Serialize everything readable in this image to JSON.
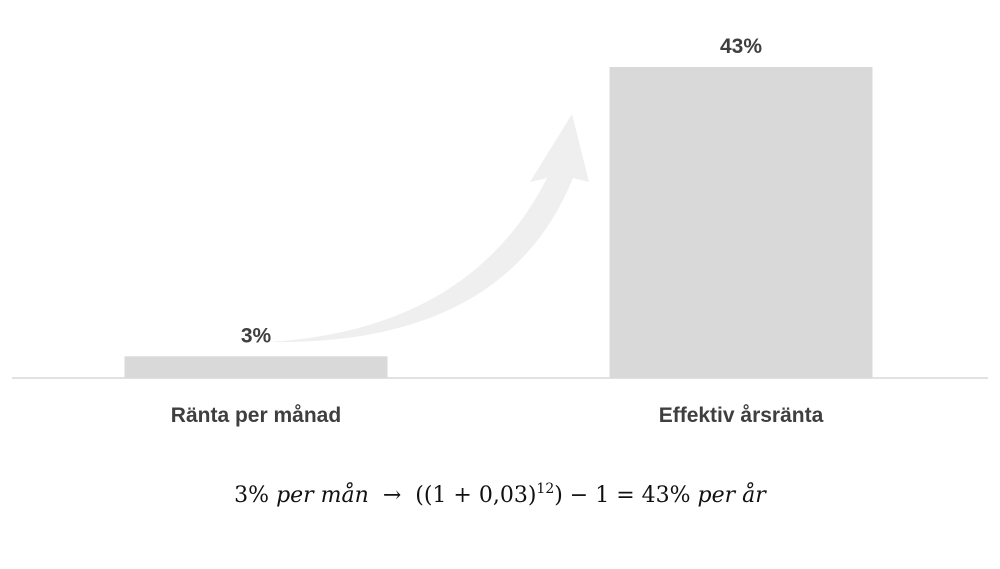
{
  "chart_data": {
    "type": "bar",
    "categories": [
      "Ränta per månad",
      "Effektiv årsränta"
    ],
    "values": [
      3,
      43
    ],
    "value_labels": [
      "3%",
      "43%"
    ],
    "color": "#d9d9d9",
    "formula": [
      "3%",
      " per mån",
      "  →  ",
      "((1 + 0,03)",
      "12",
      ") − 1 = 43%",
      " per år"
    ]
  }
}
